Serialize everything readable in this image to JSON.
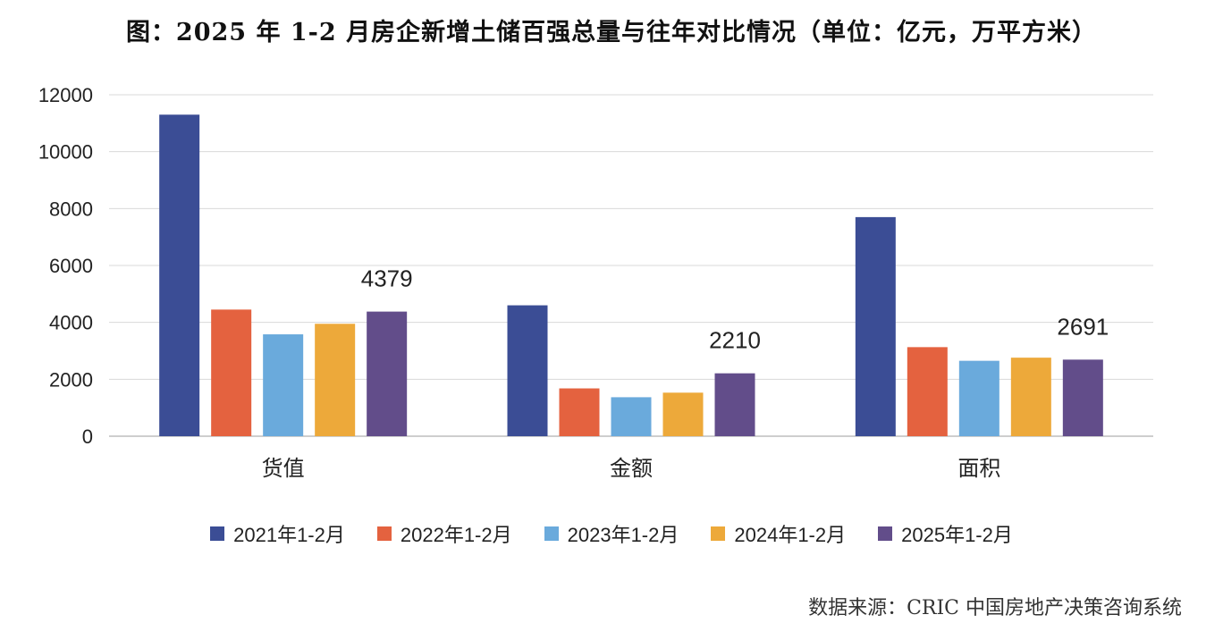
{
  "title": "图：2025 年 1-2 月房企新增土储百强总量与往年对比情况（单位：亿元，万平方米）",
  "source": "数据来源：CRIC 中国房地产决策咨询系统",
  "chart_data": {
    "type": "bar",
    "categories": [
      "货值",
      "金额",
      "面积"
    ],
    "series": [
      {
        "name": "2021年1-2月",
        "color": "#3b4d95",
        "values": [
          11300,
          4600,
          7700
        ]
      },
      {
        "name": "2022年1-2月",
        "color": "#e4623f",
        "values": [
          4450,
          1680,
          3130
        ]
      },
      {
        "name": "2023年1-2月",
        "color": "#6aaadc",
        "values": [
          3580,
          1370,
          2650
        ]
      },
      {
        "name": "2024年1-2月",
        "color": "#eda93a",
        "values": [
          3950,
          1530,
          2760
        ]
      },
      {
        "name": "2025年1-2月",
        "color": "#624d8a",
        "values": [
          4379,
          2210,
          2691
        ]
      }
    ],
    "data_labels": [
      {
        "series": 4,
        "category": 0,
        "text": "4379"
      },
      {
        "series": 4,
        "category": 1,
        "text": "2210"
      },
      {
        "series": 4,
        "category": 2,
        "text": "2691"
      }
    ],
    "y_ticks": [
      0,
      2000,
      4000,
      6000,
      8000,
      10000,
      12000
    ],
    "ylim": [
      0,
      12000
    ],
    "grid": true,
    "legend_position": "bottom",
    "xlabel": "",
    "ylabel": ""
  }
}
